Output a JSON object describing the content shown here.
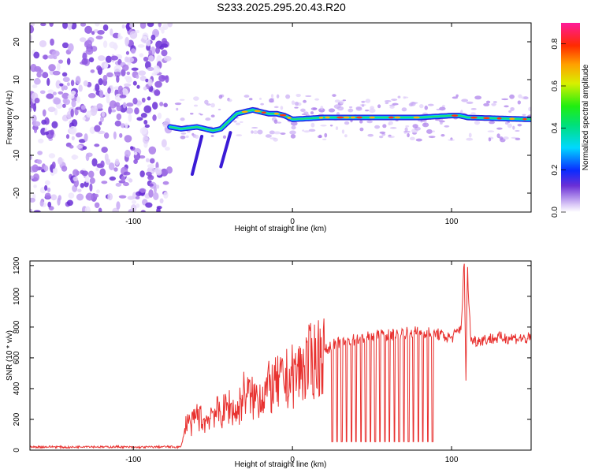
{
  "title": "S233.2025.295.20.43.R20",
  "chart_data": [
    {
      "type": "heatmap",
      "xlabel": "Height of straight line (km)",
      "ylabel": "Frequency (Hz)",
      "xlim": [
        -165,
        150
      ],
      "ylim": [
        -25,
        25
      ],
      "xticks": [
        -100,
        0,
        100
      ],
      "yticks": [
        -20,
        -10,
        0,
        10,
        20
      ],
      "colorbar": {
        "label": "Normalized spectral amplitude",
        "range": [
          0,
          0.9
        ],
        "ticks": [
          0.0,
          0.2,
          0.4,
          0.6,
          0.8
        ]
      },
      "dominant_frequency_track": {
        "x": [
          -77,
          -70,
          -60,
          -50,
          -45,
          -40,
          -35,
          -30,
          -25,
          -20,
          -15,
          -10,
          -5,
          0,
          20,
          40,
          60,
          80,
          100,
          105,
          110,
          150
        ],
        "y": [
          -2.5,
          -3,
          -2.5,
          -3.5,
          -3,
          -1,
          1,
          1.5,
          2,
          1.5,
          1,
          1,
          0.5,
          -0.5,
          0,
          0,
          0,
          0,
          0.5,
          0.5,
          0,
          -0.5
        ]
      }
    },
    {
      "type": "line",
      "xlabel": "Height of straight line (km)",
      "ylabel": "SNR (10 * v/v)",
      "xlim": [
        -165,
        150
      ],
      "ylim": [
        0,
        1230
      ],
      "xticks": [
        -100,
        0,
        100
      ],
      "yticks": [
        0,
        200,
        400,
        600,
        800,
        1000,
        1200
      ],
      "series": [
        {
          "name": "SNR",
          "color": "#e8312f",
          "x": [
            -165,
            -150,
            -140,
            -130,
            -120,
            -110,
            -100,
            -90,
            -80,
            -70,
            -66,
            -64,
            -60,
            -55,
            -50,
            -45,
            -40,
            -35,
            -30,
            -25,
            -20,
            -15,
            -10,
            -5,
            0,
            5,
            10,
            15,
            20,
            25,
            30,
            40,
            50,
            60,
            70,
            80,
            90,
            95,
            100,
            103,
            106,
            108,
            109,
            110,
            112,
            115,
            120,
            130,
            140,
            150
          ],
          "y": [
            20,
            22,
            18,
            25,
            20,
            22,
            18,
            20,
            22,
            20,
            210,
            150,
            230,
            180,
            260,
            230,
            290,
            240,
            380,
            330,
            360,
            400,
            420,
            450,
            480,
            520,
            560,
            600,
            640,
            680,
            700,
            720,
            740,
            750,
            760,
            770,
            760,
            740,
            730,
            760,
            800,
            1230,
            420,
            1180,
            720,
            710,
            720,
            730,
            730,
            720
          ]
        }
      ],
      "dropouts_x": [
        25,
        28,
        31,
        34,
        37,
        40,
        43,
        46,
        49,
        52,
        55,
        58,
        61,
        64,
        67,
        70,
        73,
        76,
        79,
        82,
        85,
        88
      ]
    }
  ]
}
